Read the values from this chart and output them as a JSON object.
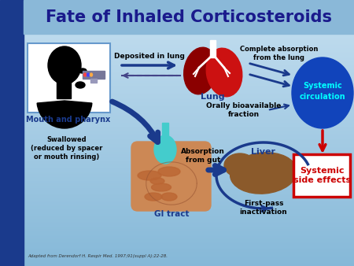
{
  "title": "Fate of Inhaled Corticosteroids",
  "title_color": "#1a1a8c",
  "title_fontsize": 15,
  "bg_color": "#a8c8e0",
  "left_bar_color": "#1a3a6b",
  "labels": {
    "mouth": "Mouth and pharynx",
    "deposited": "Deposited in lung",
    "lung": "Lung",
    "complete_abs": "Complete absorption\nfrom the lung",
    "systemic_circ": "Systemic\ncirculation",
    "orally_bio": "Orally bioavailable\nfraction",
    "swallowed": "Swallowed\n(reduced by spacer\nor mouth rinsing)",
    "absorption_gut": "Absorption\nfrom gut",
    "liver": "Liver",
    "gi_tract": "GI tract",
    "first_pass": "First-pass\ninactivation",
    "systemic_side": "Systemic\nside effects",
    "citation": "Adapted from Derendorf H. Respir Med. 1997;91(suppl A):22-28."
  },
  "colors": {
    "dark_blue": "#1a3a8c",
    "medium_blue": "#2244bb",
    "lung_red": "#8b0000",
    "lung_red2": "#cc1111",
    "liver_brown": "#8b5a2b",
    "gi_orange": "#cc8855",
    "gi_cyan": "#44cccc",
    "systemic_circ_bg": "#1144bb",
    "systemic_circ_text": "#00ffff",
    "side_effects_red": "#cc0000",
    "white": "#ffffff",
    "black": "#000000"
  }
}
